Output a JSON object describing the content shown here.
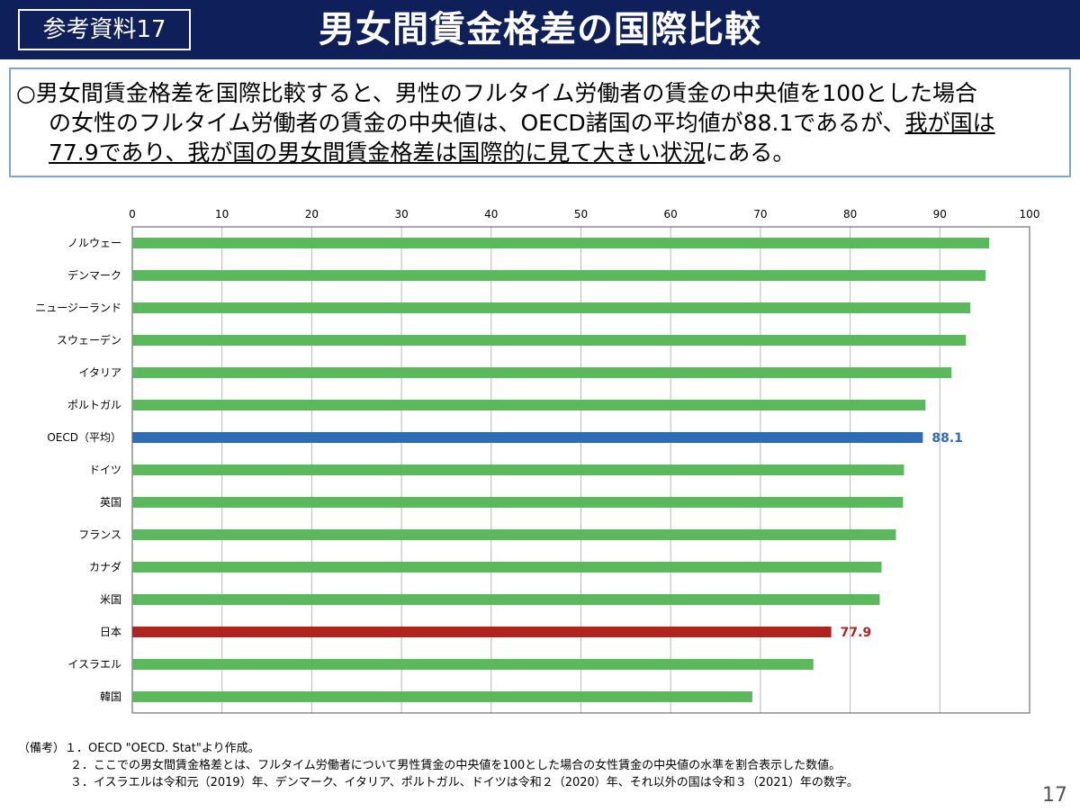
{
  "header": {
    "badge": "参考資料17",
    "title": "男女間賃金格差の国際比較"
  },
  "summary": {
    "bullet": "○",
    "line1": "男女間賃金格差を国際比較すると、男性のフルタイム労働者の賃金の中央値を100とした場合",
    "line2_plain": "の女性のフルタイム労働者の賃金の中央値は、OECD諸国の平均値が88.1であるが、",
    "line2_underlined": "我が国は",
    "line3_underlined": "77.9であり、我が国の男女間賃金格差は国際的に見て大きい状況",
    "line3_plain": "にある。"
  },
  "chart_data": {
    "type": "bar",
    "orientation": "horizontal",
    "categories": [
      "ノルウェー",
      "デンマーク",
      "ニュージーランド",
      "スウェーデン",
      "イタリア",
      "ポルトガル",
      "OECD（平均）",
      "ドイツ",
      "英国",
      "フランス",
      "カナダ",
      "米国",
      "日本",
      "イスラエル",
      "韓国"
    ],
    "values": [
      95.5,
      95.1,
      93.4,
      92.9,
      91.3,
      88.4,
      88.1,
      86.0,
      85.9,
      85.1,
      83.5,
      83.3,
      77.9,
      75.9,
      69.1
    ],
    "data_labels": {
      "OECD（平均）": "88.1",
      "日本": "77.9"
    },
    "x_ticks": [
      0,
      10,
      20,
      30,
      40,
      50,
      60,
      70,
      80,
      90,
      100
    ],
    "xlim": [
      0,
      100
    ],
    "xaxis_position": "top",
    "grid": true,
    "colors": {
      "default": "#5cb85c",
      "OECD（平均）": "#2e6db4",
      "日本": "#b0241f"
    }
  },
  "notes": [
    "（備考）１．OECD \"OECD. Stat\"より作成。",
    "２．ここでの男女間賃金格差とは、フルタイム労働者について男性賃金の中央値を100とした場合の女性賃金の中央値の水準を割合表示した数値。",
    "３．イスラエルは令和元（2019）年、デンマーク、イタリア、ポルトガル、ドイツは令和２（2020）年、それ以外の国は令和３（2021）年の数字。"
  ],
  "page_number": "17"
}
